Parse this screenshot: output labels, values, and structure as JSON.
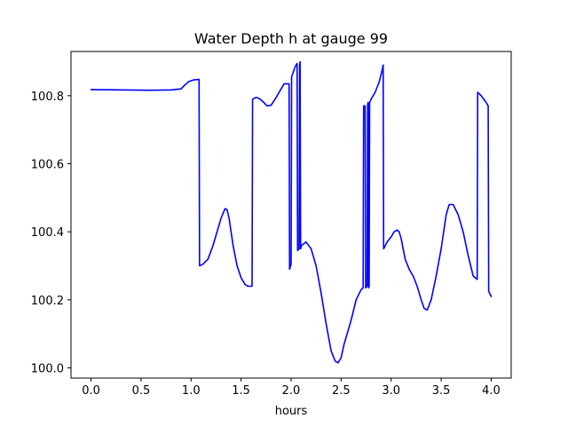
{
  "chart_data": {
    "type": "line",
    "title": "Water Depth h at gauge 99",
    "xlabel": "hours",
    "ylabel": "",
    "xlim": [
      -0.2,
      4.2
    ],
    "ylim": [
      99.97,
      100.93
    ],
    "xticks": [
      0.0,
      0.5,
      1.0,
      1.5,
      2.0,
      2.5,
      3.0,
      3.5,
      4.0
    ],
    "xtick_labels": [
      "0.0",
      "0.5",
      "1.0",
      "1.5",
      "2.0",
      "2.5",
      "3.0",
      "3.5",
      "4.0"
    ],
    "yticks": [
      100.0,
      100.2,
      100.4,
      100.6,
      100.8
    ],
    "ytick_labels": [
      "100.0",
      "100.2",
      "100.4",
      "100.6",
      "100.8"
    ],
    "grid": false,
    "series": [
      {
        "name": "",
        "color": "#0000ff",
        "x": [
          0.0,
          0.3,
          0.6,
          0.8,
          0.9,
          0.94,
          0.98,
          1.02,
          1.08,
          1.085,
          1.12,
          1.17,
          1.22,
          1.27,
          1.3,
          1.34,
          1.36,
          1.38,
          1.42,
          1.46,
          1.5,
          1.54,
          1.57,
          1.6,
          1.61,
          1.615,
          1.65,
          1.68,
          1.72,
          1.76,
          1.8,
          1.84,
          1.88,
          1.93,
          1.98,
          1.985,
          2.0,
          2.005,
          2.04,
          2.06,
          2.065,
          2.08,
          2.085,
          2.09,
          2.095,
          2.1,
          2.105,
          2.15,
          2.2,
          2.25,
          2.3,
          2.35,
          2.4,
          2.44,
          2.47,
          2.5,
          2.53,
          2.56,
          2.6,
          2.65,
          2.7,
          2.72,
          2.725,
          2.74,
          2.745,
          2.76,
          2.765,
          2.77,
          2.775,
          2.78,
          2.785,
          2.8,
          2.84,
          2.88,
          2.91,
          2.92,
          2.925,
          2.96,
          3.0,
          3.03,
          3.06,
          3.08,
          3.1,
          3.14,
          3.18,
          3.22,
          3.26,
          3.3,
          3.33,
          3.36,
          3.4,
          3.45,
          3.5,
          3.55,
          3.58,
          3.62,
          3.67,
          3.72,
          3.77,
          3.82,
          3.86,
          3.865,
          3.9,
          3.95,
          3.97,
          3.975,
          4.0
        ],
        "y": [
          100.818,
          100.817,
          100.816,
          100.817,
          100.82,
          100.832,
          100.842,
          100.846,
          100.848,
          100.3,
          100.305,
          100.32,
          100.36,
          100.41,
          100.44,
          100.468,
          100.465,
          100.44,
          100.36,
          100.3,
          100.265,
          100.245,
          100.24,
          100.24,
          100.24,
          100.79,
          100.795,
          100.792,
          100.782,
          100.77,
          100.772,
          100.79,
          100.81,
          100.835,
          100.835,
          100.29,
          100.305,
          100.855,
          100.885,
          100.895,
          100.345,
          100.35,
          100.89,
          100.9,
          100.35,
          100.355,
          100.36,
          100.37,
          100.35,
          100.3,
          100.22,
          100.13,
          100.05,
          100.02,
          100.015,
          100.03,
          100.07,
          100.1,
          100.14,
          100.2,
          100.23,
          100.235,
          100.77,
          100.77,
          100.235,
          100.24,
          100.775,
          100.78,
          100.235,
          100.24,
          100.78,
          100.79,
          100.81,
          100.84,
          100.875,
          100.89,
          100.35,
          100.37,
          100.385,
          100.4,
          100.405,
          100.4,
          100.38,
          100.32,
          100.29,
          100.27,
          100.24,
          100.2,
          100.175,
          100.17,
          100.2,
          100.27,
          100.35,
          100.45,
          100.48,
          100.48,
          100.45,
          100.4,
          100.33,
          100.27,
          100.26,
          100.81,
          100.8,
          100.78,
          100.77,
          100.225,
          100.21
        ]
      }
    ]
  }
}
